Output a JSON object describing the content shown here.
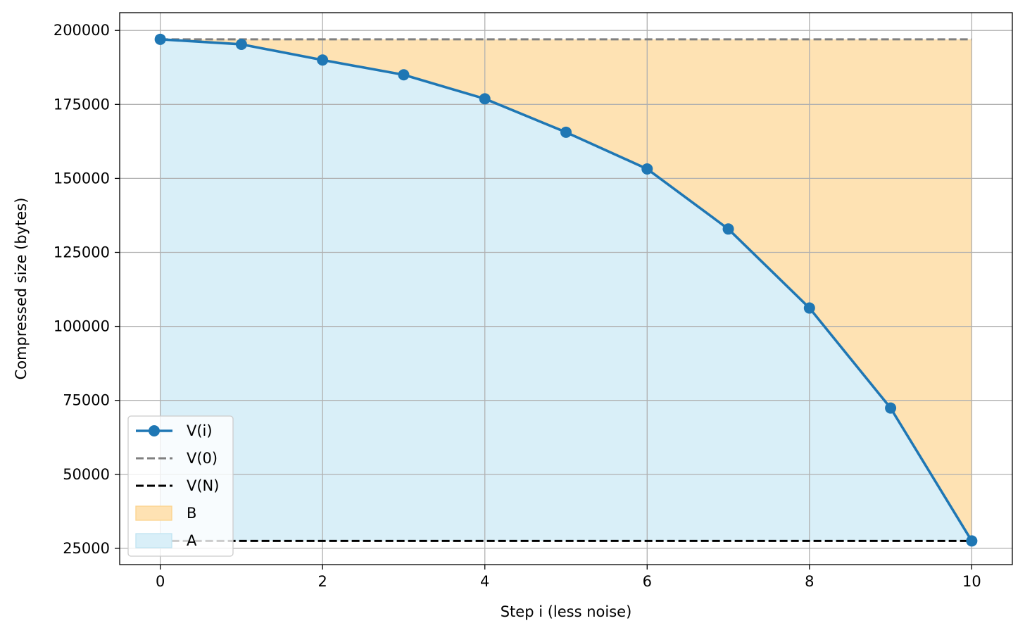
{
  "chart_data": {
    "type": "line",
    "title": "",
    "xlabel": "Step i (less noise)",
    "ylabel": "Compressed size (bytes)",
    "xlim": [
      -0.5,
      10.5
    ],
    "ylim": [
      19500,
      206000
    ],
    "x_ticks": [
      0,
      2,
      4,
      6,
      8,
      10
    ],
    "y_ticks": [
      25000,
      50000,
      75000,
      100000,
      125000,
      150000,
      175000,
      200000
    ],
    "grid": true,
    "legend_position": "lower-left",
    "x": [
      0,
      1,
      2,
      3,
      4,
      5,
      6,
      7,
      8,
      9,
      10
    ],
    "series": [
      {
        "name": "V(i)",
        "style": "solid-markers",
        "color": "#1f77b4",
        "values": [
          197000,
          195300,
          190000,
          185000,
          176900,
          165600,
          153200,
          132900,
          106200,
          72400,
          27500
        ]
      },
      {
        "name": "V(0)",
        "style": "dashed",
        "color": "#808080",
        "values": [
          197000,
          197000,
          197000,
          197000,
          197000,
          197000,
          197000,
          197000,
          197000,
          197000,
          197000
        ]
      },
      {
        "name": "V(N)",
        "style": "dashed",
        "color": "#000000",
        "values": [
          27500,
          27500,
          27500,
          27500,
          27500,
          27500,
          27500,
          27500,
          27500,
          27500,
          27500
        ]
      }
    ],
    "areas": [
      {
        "name": "B",
        "color": "#fee2b3",
        "between": [
          "V(0)",
          "V(i)"
        ]
      },
      {
        "name": "A",
        "color": "#d9eff8",
        "between": [
          "V(i)",
          "V(N)"
        ]
      }
    ]
  }
}
